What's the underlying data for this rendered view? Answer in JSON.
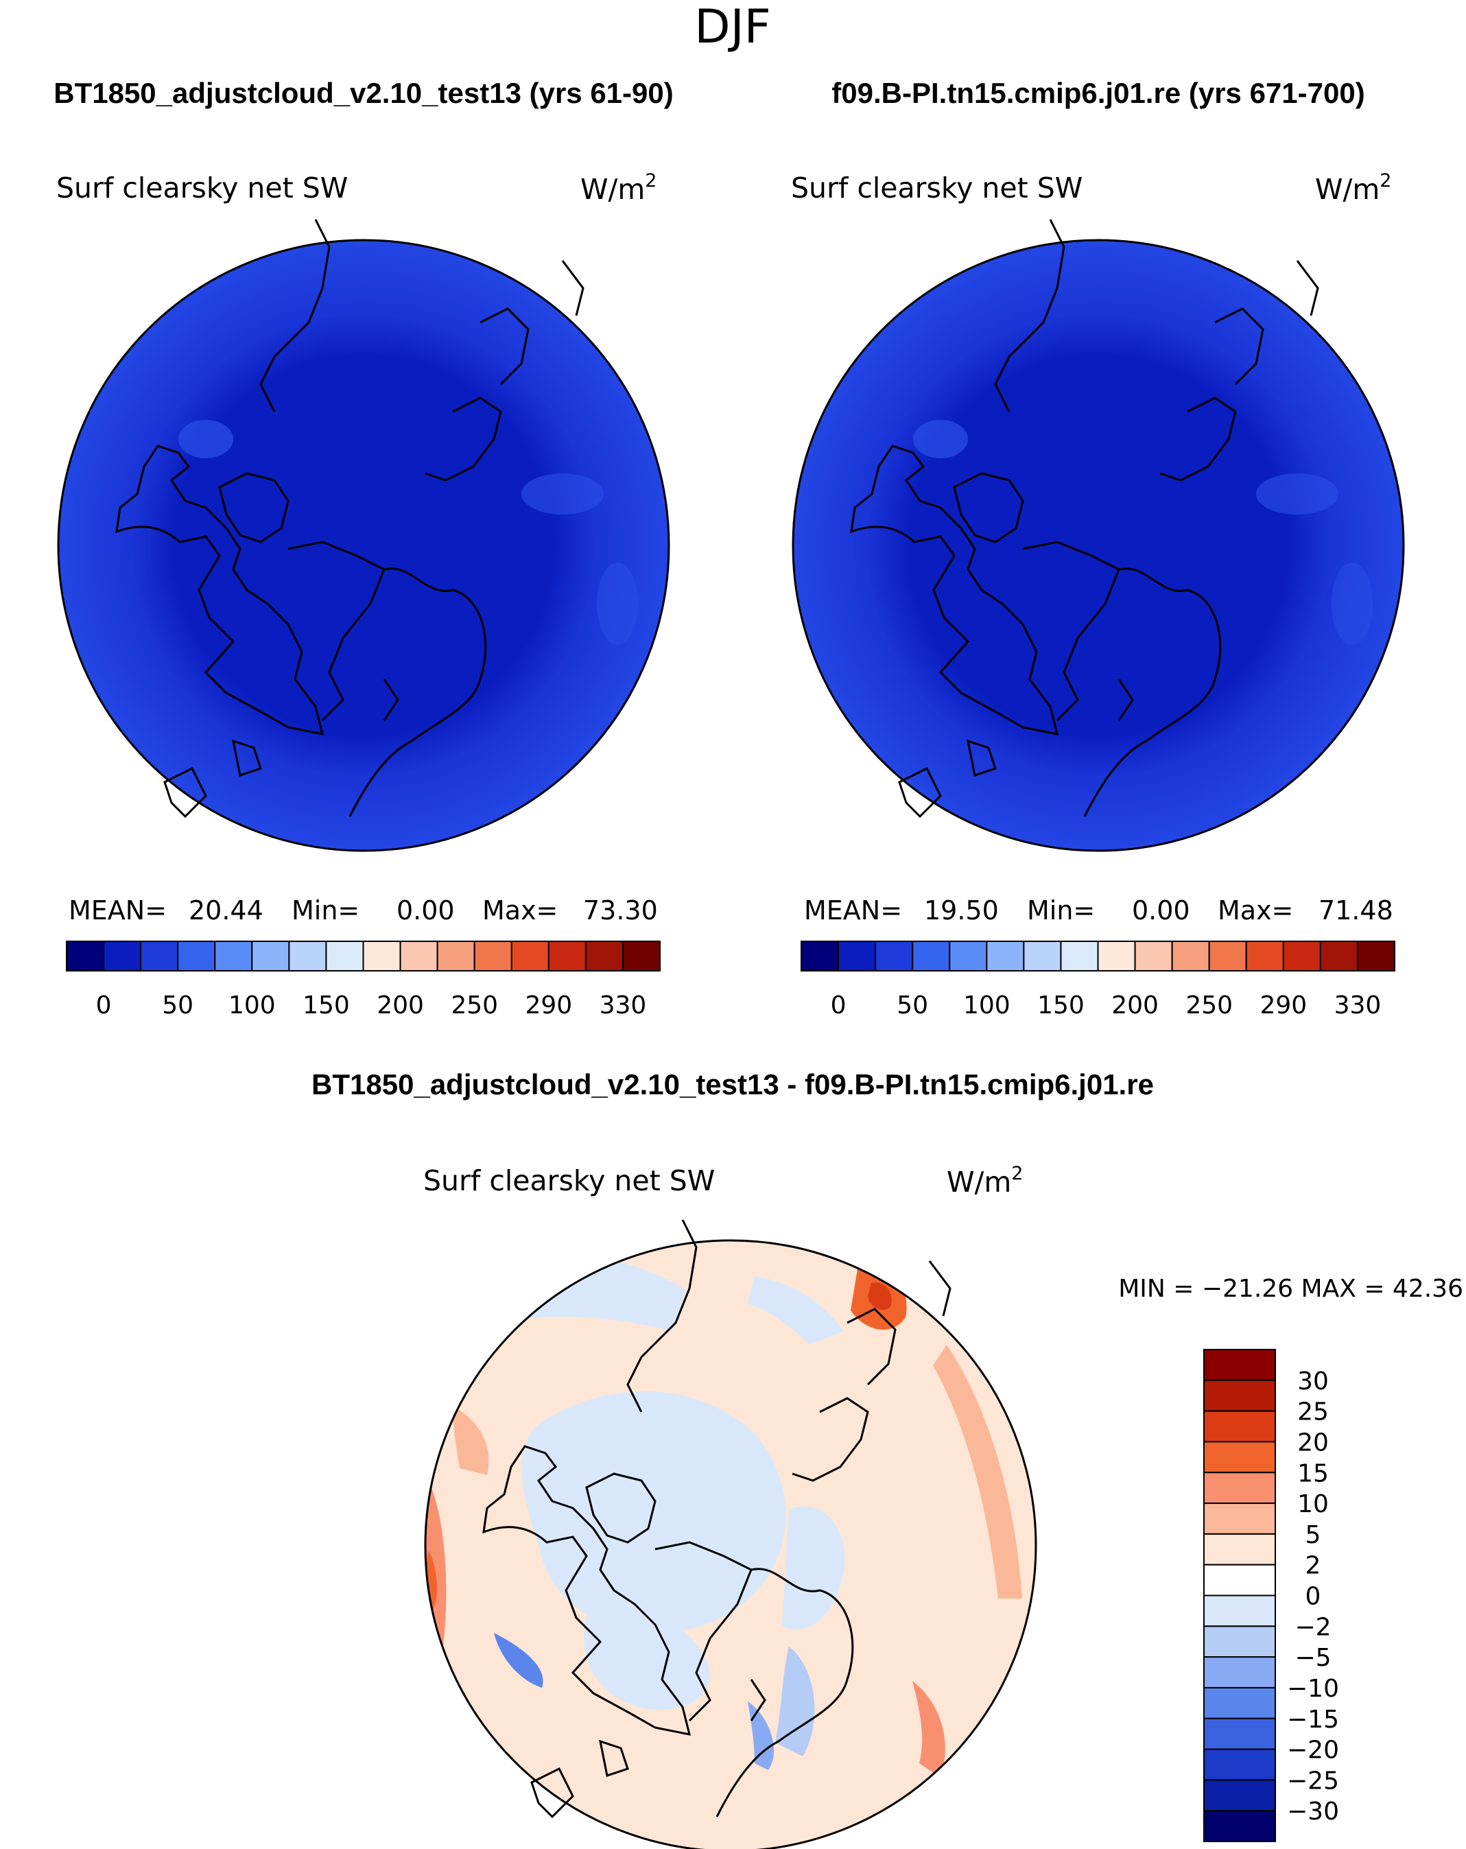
{
  "figure": {
    "season": "DJF",
    "panel_left": {
      "title": "BT1850_adjustcloud_v2.10_test13 (yrs 61-90)",
      "field": "Surf  clearsky  net  SW",
      "units_base": "W/m",
      "units_sup": "2",
      "mean_label": "MEAN=",
      "mean_value": "20.44",
      "min_label": "Min=",
      "min_value": "0.00",
      "max_label": "Max=",
      "max_value": "73.30"
    },
    "panel_right": {
      "title": "f09.B-PI.tn15.cmip6.j01.re (yrs 671-700)",
      "field": "Surf  clearsky  net  SW",
      "units_base": "W/m",
      "units_sup": "2",
      "mean_label": "MEAN=",
      "mean_value": "19.50",
      "min_label": "Min=",
      "min_value": "0.00",
      "max_label": "Max=",
      "max_value": "71.48"
    },
    "panel_diff": {
      "title": "BT1850_adjustcloud_v2.10_test13 - f09.B-PI.tn15.cmip6.j01.re",
      "field": "Surf  clearsky  net  SW",
      "units_base": "W/m",
      "units_sup": "2",
      "minmax": "MIN = −21.26  MAX =   42.36"
    }
  },
  "chart_data": [
    {
      "type": "heatmap",
      "projection": "north-polar-stereographic",
      "title": "BT1850_adjustcloud_v2.10_test13 (yrs 61-90)",
      "variable": "Surf clearsky net SW",
      "units": "W/m2",
      "mean": 20.44,
      "min": 0.0,
      "max": 73.3,
      "legend": {
        "tick_labels": [
          "0",
          "50",
          "100",
          "150",
          "200",
          "250",
          "290",
          "330"
        ],
        "colors": [
          "#00007a",
          "#0a1ec0",
          "#1e3cdc",
          "#3464ee",
          "#5a8cf8",
          "#8cb4fa",
          "#b8d2fc",
          "#dcebfc",
          "#fde8da",
          "#fac7b0",
          "#f6a080",
          "#f0764c",
          "#e44a22",
          "#c82810",
          "#a01408",
          "#700000"
        ]
      }
    },
    {
      "type": "heatmap",
      "projection": "north-polar-stereographic",
      "title": "f09.B-PI.tn15.cmip6.j01.re (yrs 671-700)",
      "variable": "Surf clearsky net SW",
      "units": "W/m2",
      "mean": 19.5,
      "min": 0.0,
      "max": 71.48,
      "legend": {
        "tick_labels": [
          "0",
          "50",
          "100",
          "150",
          "200",
          "250",
          "290",
          "330"
        ],
        "colors": [
          "#00007a",
          "#0a1ec0",
          "#1e3cdc",
          "#3464ee",
          "#5a8cf8",
          "#8cb4fa",
          "#b8d2fc",
          "#dcebfc",
          "#fde8da",
          "#fac7b0",
          "#f6a080",
          "#f0764c",
          "#e44a22",
          "#c82810",
          "#a01408",
          "#700000"
        ]
      }
    },
    {
      "type": "heatmap",
      "projection": "north-polar-stereographic",
      "title": "BT1850_adjustcloud_v2.10_test13 - f09.B-PI.tn15.cmip6.j01.re",
      "variable": "Surf clearsky net SW",
      "units": "W/m2",
      "min": -21.26,
      "max": 42.36,
      "legend": {
        "tick_labels": [
          "30",
          "25",
          "20",
          "15",
          "10",
          "5",
          "2",
          "0",
          "−2",
          "−5",
          "−10",
          "−15",
          "−20",
          "−25",
          "−30"
        ],
        "colors": [
          "#8c0000",
          "#b41c08",
          "#dc3c14",
          "#f0642c",
          "#f89070",
          "#fab898",
          "#fde6d6",
          "#ffffff",
          "#d8e8fa",
          "#b4ccf6",
          "#88aaf2",
          "#5a86ec",
          "#3a62e0",
          "#1a3cc8",
          "#0a20a8",
          "#00006e"
        ]
      }
    }
  ]
}
